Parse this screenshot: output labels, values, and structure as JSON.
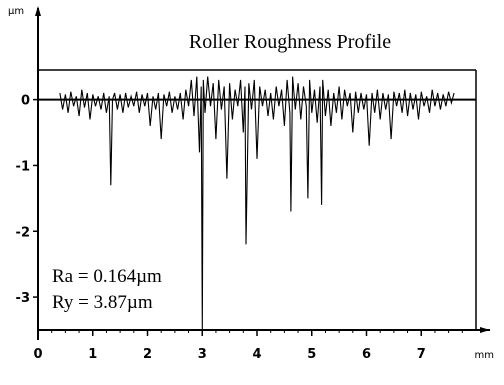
{
  "chart_data": {
    "type": "line",
    "title": "Roller Roughness Profile",
    "ylabel_unit": "µm",
    "xlabel_unit": "mm",
    "annotations": [
      "Ra = 0.164µm",
      "Ry = 3.87µm"
    ],
    "xlim": [
      0,
      8
    ],
    "ylim": [
      -3.5,
      0.45
    ],
    "x_ticks": [
      "0",
      "1",
      "2",
      "3",
      "4",
      "5",
      "6",
      "7"
    ],
    "y_ticks": [
      "0",
      "-1",
      "-2",
      "-3"
    ],
    "x_tick_values": [
      0,
      1,
      2,
      3,
      4,
      5,
      6,
      7
    ],
    "y_tick_values": [
      0,
      -1,
      -2,
      -3
    ],
    "reference_level_upper": 0.45,
    "series": [
      {
        "values_note": "roughness profile",
        "x": [
          0.4,
          0.45,
          0.5,
          0.55,
          0.6,
          0.65,
          0.7,
          0.75,
          0.8,
          0.85,
          0.9,
          0.95,
          1.0,
          1.05,
          1.1,
          1.15,
          1.2,
          1.25,
          1.3,
          1.33,
          1.36,
          1.4,
          1.45,
          1.5,
          1.55,
          1.6,
          1.65,
          1.7,
          1.75,
          1.8,
          1.85,
          1.9,
          1.95,
          2.0,
          2.05,
          2.1,
          2.15,
          2.2,
          2.25,
          2.3,
          2.35,
          2.4,
          2.45,
          2.5,
          2.55,
          2.6,
          2.65,
          2.7,
          2.75,
          2.8,
          2.85,
          2.9,
          2.95,
          2.98,
          3.0,
          3.02,
          3.05,
          3.1,
          3.15,
          3.2,
          3.25,
          3.3,
          3.35,
          3.4,
          3.45,
          3.5,
          3.55,
          3.6,
          3.65,
          3.7,
          3.75,
          3.78,
          3.8,
          3.85,
          3.9,
          3.95,
          4.0,
          4.05,
          4.1,
          4.15,
          4.2,
          4.25,
          4.3,
          4.35,
          4.4,
          4.45,
          4.5,
          4.55,
          4.6,
          4.62,
          4.65,
          4.7,
          4.75,
          4.8,
          4.85,
          4.9,
          4.93,
          4.96,
          5.0,
          5.05,
          5.1,
          5.15,
          5.18,
          5.2,
          5.25,
          5.3,
          5.35,
          5.4,
          5.45,
          5.5,
          5.55,
          5.6,
          5.65,
          5.7,
          5.75,
          5.8,
          5.85,
          5.9,
          5.95,
          6.0,
          6.05,
          6.1,
          6.15,
          6.2,
          6.25,
          6.3,
          6.35,
          6.4,
          6.45,
          6.5,
          6.55,
          6.6,
          6.65,
          6.7,
          6.75,
          6.8,
          6.85,
          6.9,
          6.95,
          7.0,
          7.05,
          7.1,
          7.15,
          7.2,
          7.25,
          7.3,
          7.35,
          7.4,
          7.45,
          7.5,
          7.55,
          7.6
        ],
        "y": [
          0.1,
          -0.15,
          0.08,
          -0.2,
          0.12,
          -0.1,
          0.05,
          -0.25,
          0.15,
          -0.12,
          0.1,
          -0.3,
          0.08,
          -0.1,
          0.05,
          -0.15,
          0.1,
          -0.2,
          0.05,
          -1.3,
          0.0,
          0.1,
          -0.15,
          0.08,
          -0.2,
          0.1,
          -0.12,
          0.05,
          -0.1,
          0.12,
          -0.2,
          0.08,
          -0.1,
          0.1,
          -0.4,
          0.05,
          -0.15,
          0.1,
          -0.6,
          0.08,
          -0.1,
          0.12,
          -0.2,
          0.05,
          -0.15,
          0.1,
          -0.3,
          0.15,
          -0.1,
          0.3,
          -0.25,
          0.35,
          -0.8,
          0.2,
          -3.5,
          0.3,
          -0.2,
          0.35,
          -0.1,
          0.25,
          -0.6,
          0.3,
          -0.15,
          0.2,
          -1.2,
          0.25,
          -0.3,
          0.15,
          -0.1,
          0.3,
          -0.5,
          0.2,
          -2.2,
          0.25,
          -0.15,
          0.3,
          -0.9,
          0.2,
          -0.1,
          0.15,
          -0.25,
          0.1,
          -0.3,
          0.2,
          -0.1,
          0.15,
          -0.4,
          0.3,
          -0.2,
          -1.7,
          0.35,
          -0.15,
          0.25,
          -0.3,
          0.2,
          -0.1,
          -1.5,
          0.3,
          -0.2,
          0.15,
          -0.35,
          0.2,
          -1.6,
          0.3,
          -0.25,
          0.15,
          -0.4,
          0.1,
          -0.2,
          0.2,
          -0.3,
          0.15,
          -0.1,
          0.1,
          -0.5,
          0.12,
          -0.2,
          0.1,
          -0.15,
          0.08,
          -0.7,
          0.1,
          -0.2,
          0.15,
          -0.3,
          0.1,
          -0.15,
          0.08,
          -0.6,
          0.12,
          -0.1,
          0.1,
          -0.2,
          0.15,
          -0.25,
          0.1,
          -0.15,
          0.08,
          -0.3,
          0.12,
          -0.1,
          0.05,
          -0.2,
          0.15,
          -0.1,
          0.1,
          -0.15,
          0.08,
          -0.1,
          0.12,
          -0.05,
          0.1
        ]
      }
    ]
  }
}
